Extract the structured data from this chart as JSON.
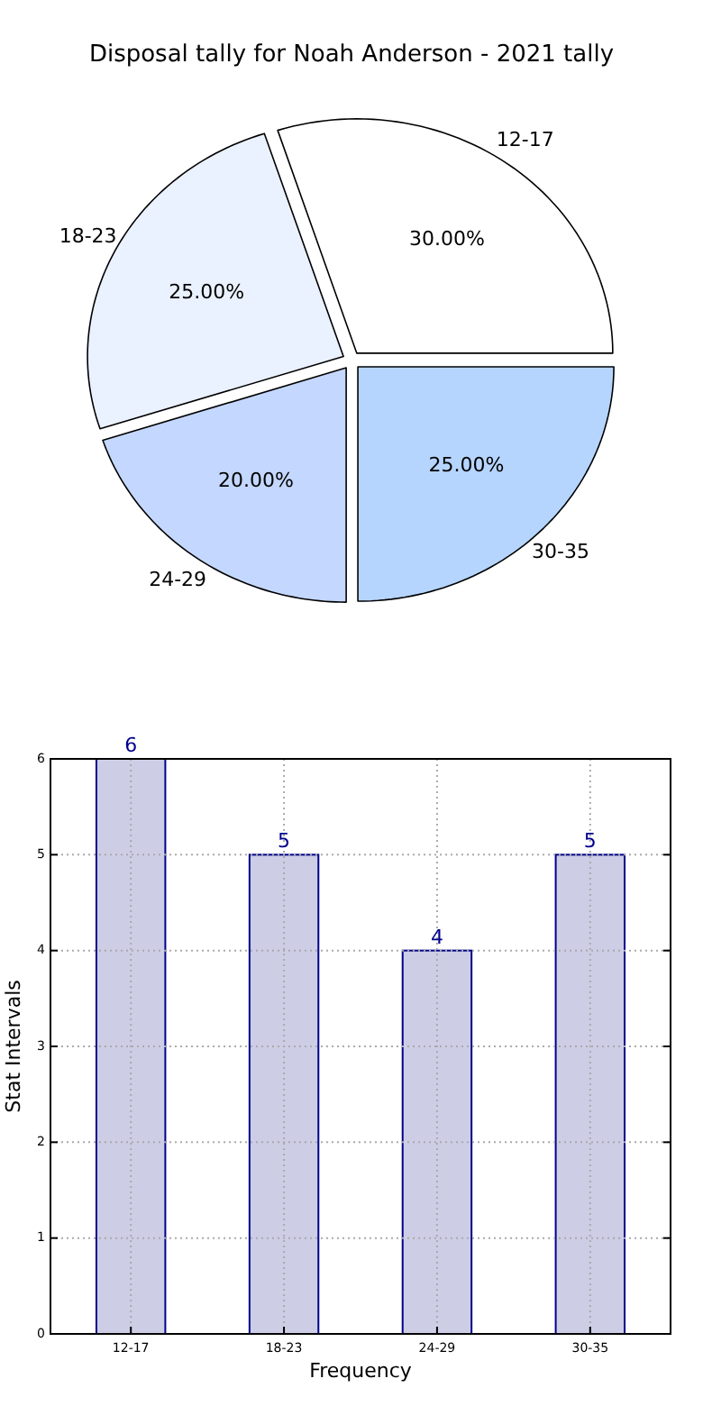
{
  "chart_data": [
    {
      "type": "pie",
      "title": "Disposal tally for Noah Anderson - 2021 tally",
      "categories": [
        "12-17",
        "18-23",
        "24-29",
        "30-35"
      ],
      "values": [
        30,
        25,
        20,
        25
      ],
      "value_labels": [
        "30.00%",
        "25.00%",
        "20.00%",
        "25.00%"
      ],
      "colors": [
        "#ffffff",
        "#eaf1ff",
        "#c4d7fe",
        "#b5d5fe"
      ]
    },
    {
      "type": "bar",
      "xlabel": "Frequency",
      "ylabel": "Stat Intervals",
      "categories": [
        "12-17",
        "18-23",
        "24-29",
        "30-35"
      ],
      "values": [
        6,
        5,
        4,
        5
      ],
      "color": "#cdcde6",
      "ylim": [
        0,
        6
      ],
      "yticks": [
        0,
        1,
        2,
        3,
        4,
        5,
        6
      ],
      "grid": true,
      "data_labels": true
    }
  ]
}
